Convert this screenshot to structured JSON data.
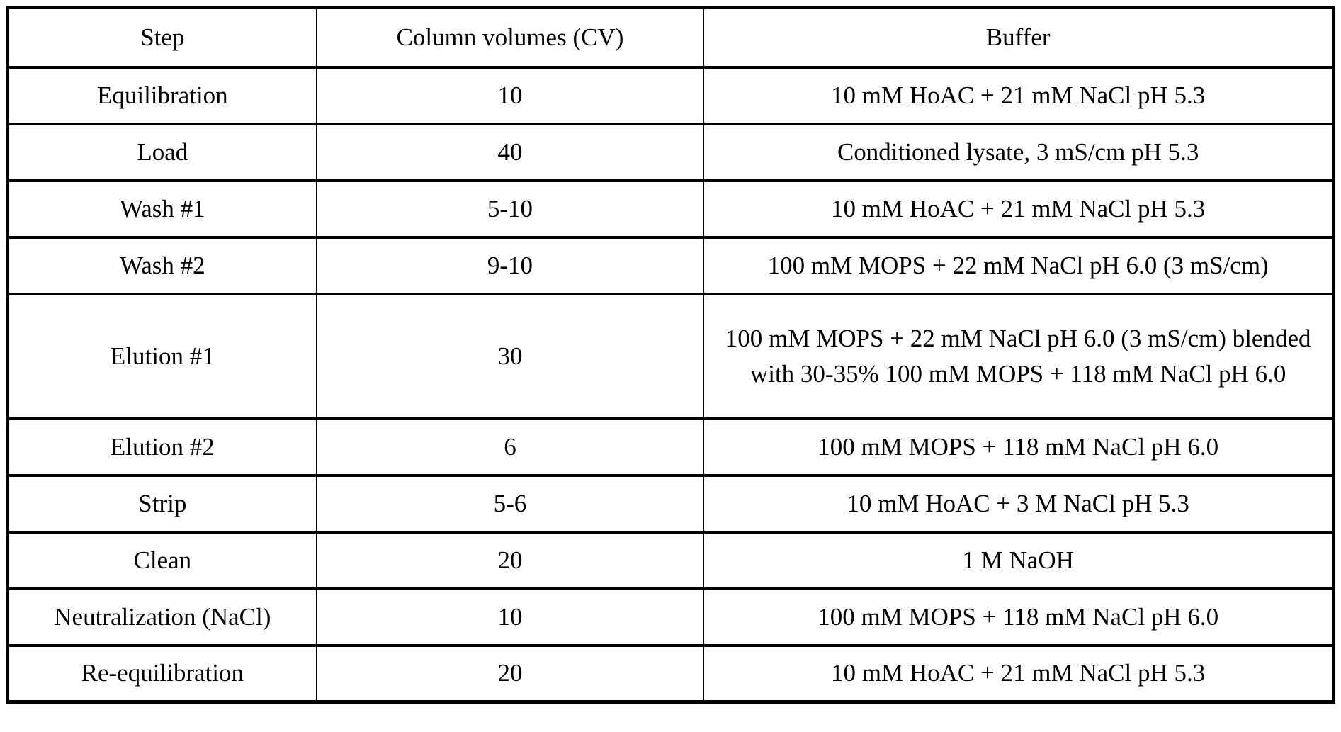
{
  "table": {
    "headers": [
      "Step",
      "Column volumes (CV)",
      "Buffer"
    ],
    "rows": [
      {
        "step": "Equilibration",
        "cv": "10",
        "buffer": "10 mM HoAC + 21 mM NaCl pH 5.3"
      },
      {
        "step": "Load",
        "cv": "40",
        "buffer": "Conditioned lysate, 3 mS/cm pH 5.3"
      },
      {
        "step": "Wash #1",
        "cv": "5-10",
        "buffer": "10 mM HoAC + 21 mM NaCl pH 5.3"
      },
      {
        "step": "Wash #2",
        "cv": "9-10",
        "buffer": "100 mM MOPS + 22 mM NaCl pH 6.0 (3 mS/cm)"
      },
      {
        "step": "Elution #1",
        "cv": "30",
        "buffer": "100 mM MOPS + 22 mM NaCl pH 6.0 (3 mS/cm) blended with 30-35% 100 mM MOPS + 118 mM NaCl pH 6.0"
      },
      {
        "step": "Elution #2",
        "cv": "6",
        "buffer": "100 mM MOPS + 118 mM NaCl pH 6.0"
      },
      {
        "step": "Strip",
        "cv": "5-6",
        "buffer": "10 mM HoAC + 3 M NaCl pH 5.3"
      },
      {
        "step": "Clean",
        "cv": "20",
        "buffer": "1 M NaOH"
      },
      {
        "step": "Neutralization (NaCl)",
        "cv": "10",
        "buffer": "100 mM MOPS + 118 mM NaCl pH 6.0"
      },
      {
        "step": "Re-equilibration",
        "cv": "20",
        "buffer": "10 mM HoAC + 21 mM NaCl pH 5.3"
      }
    ],
    "colors": {
      "text": "#000000",
      "border": "#000000",
      "background": "#ffffff"
    }
  }
}
